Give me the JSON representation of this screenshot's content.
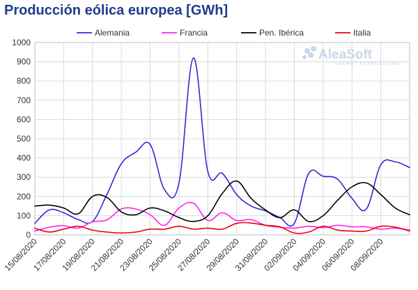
{
  "chart_data": {
    "type": "line",
    "title": "Producción eólica europea [GWh]",
    "xlabel": "",
    "ylabel": "",
    "ylim": [
      0,
      1000
    ],
    "yticks": [
      0,
      100,
      200,
      300,
      400,
      500,
      600,
      700,
      800,
      900,
      1000
    ],
    "grid": true,
    "legend_position": "top",
    "x": [
      "15/08/2020",
      "16/08/2020",
      "17/08/2020",
      "18/08/2020",
      "19/08/2020",
      "20/08/2020",
      "21/08/2020",
      "22/08/2020",
      "23/08/2020",
      "24/08/2020",
      "25/08/2020",
      "26/08/2020",
      "27/08/2020",
      "28/08/2020",
      "29/08/2020",
      "30/08/2020",
      "31/08/2020",
      "01/09/2020",
      "02/09/2020",
      "03/09/2020",
      "04/09/2020",
      "05/09/2020",
      "06/09/2020",
      "07/09/2020",
      "08/09/2020",
      "09/09/2020",
      "10/09/2020"
    ],
    "xtick_labels": [
      "15/08/2020",
      "17/08/2020",
      "19/08/2020",
      "21/08/2020",
      "23/08/2020",
      "25/08/2020",
      "27/08/2020",
      "29/08/2020",
      "31/08/2020",
      "02/09/2020",
      "04/09/2020",
      "06/09/2020",
      "08/09/2020"
    ],
    "series": [
      {
        "name": "Alemania",
        "color": "#2b2bd6",
        "values": [
          60,
          130,
          115,
          80,
          70,
          210,
          370,
          430,
          470,
          235,
          270,
          920,
          330,
          320,
          210,
          150,
          125,
          90,
          60,
          320,
          305,
          290,
          190,
          135,
          365,
          380,
          350
        ]
      },
      {
        "name": "Francia",
        "color": "#ff22ee",
        "values": [
          20,
          40,
          48,
          35,
          68,
          78,
          135,
          135,
          105,
          50,
          140,
          165,
          75,
          115,
          75,
          80,
          50,
          40,
          35,
          45,
          38,
          50,
          42,
          42,
          30,
          35,
          25
        ]
      },
      {
        "name": "Pen. Ibérica",
        "color": "#000000",
        "values": [
          150,
          155,
          140,
          110,
          200,
          195,
          120,
          105,
          140,
          125,
          90,
          70,
          100,
          215,
          280,
          190,
          130,
          90,
          130,
          70,
          100,
          180,
          250,
          270,
          210,
          140,
          105
        ]
      },
      {
        "name": "Italia",
        "color": "#e8000b",
        "values": [
          35,
          15,
          30,
          45,
          25,
          15,
          10,
          15,
          30,
          30,
          45,
          30,
          35,
          30,
          60,
          62,
          50,
          42,
          10,
          15,
          45,
          25,
          20,
          20,
          45,
          40,
          20
        ]
      }
    ]
  },
  "logo": {
    "name": "AleaSoft",
    "tagline": "ENERGY FORECASTING",
    "icon": "aleasoft-logo-icon"
  }
}
